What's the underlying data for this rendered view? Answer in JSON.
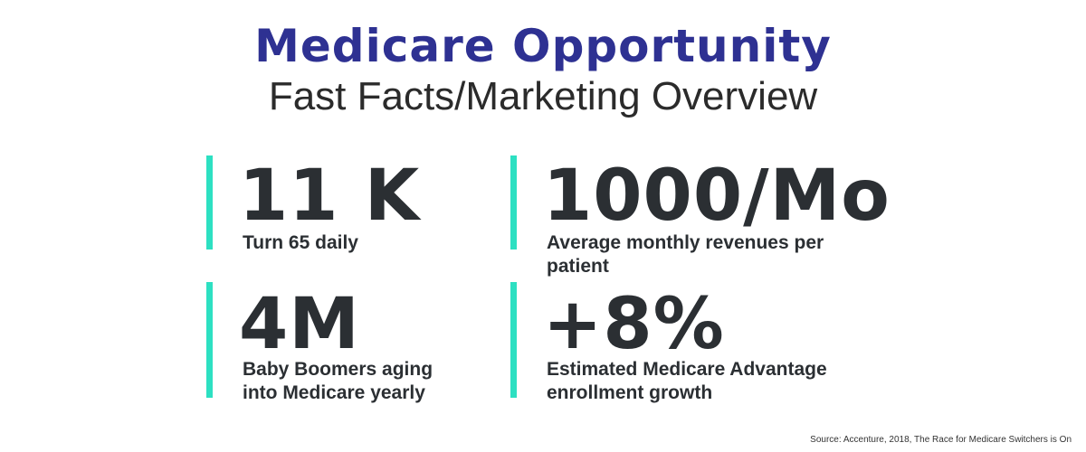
{
  "header": {
    "title": "Medicare Opportunity",
    "subtitle": "Fast Facts/Marketing Overview"
  },
  "stats": [
    {
      "value": "11 K",
      "label": "Turn 65 daily"
    },
    {
      "value": "1000/Mo",
      "label": "Average monthly revenues per patient"
    },
    {
      "value": "4M",
      "label_lines": [
        "Baby Boomers aging",
        "into Medicare yearly"
      ]
    },
    {
      "value": "+8%",
      "label_lines": [
        "Estimated Medicare Advantage",
        "enrollment growth"
      ]
    }
  ],
  "footer": {
    "source": "Source: Accenture, 2018, The Race for Medicare Switchers is On"
  },
  "colors": {
    "title": "#2e3192",
    "accent_bar": "#2de0c2",
    "text": "#2b2f33"
  }
}
